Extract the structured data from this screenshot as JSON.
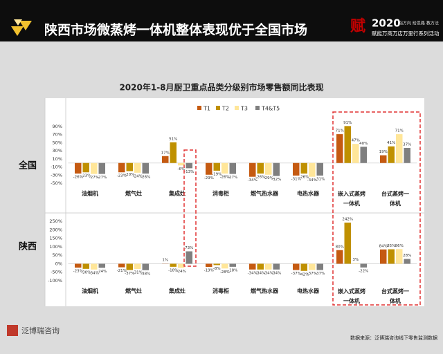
{
  "header": {
    "title": "陕西市场微蒸烤一体机整体表现优于全国市场",
    "badge_year": "2020",
    "badge_slogan": "指方向 给思路 教方法",
    "badge_event": "赋能万商万店万里行系列活动"
  },
  "chart_data": [
    {
      "type": "bar",
      "title": "2020年1-8月厨卫重点品类分级别市场零售额同比表现",
      "row_label": "全国",
      "categories": [
        "油烟机",
        "燃气灶",
        "集成灶",
        "消毒柜",
        "燃气热水器",
        "电热水器",
        "嵌入式蒸烤一体机",
        "台式蒸烤一体机"
      ],
      "series": [
        {
          "name": "T1",
          "color": "#c55a11",
          "values": [
            -26,
            -23,
            17,
            -29,
            -34,
            -31,
            71,
            19
          ],
          "value_labels": [
            "-26%",
            "-23%",
            "17%",
            "-29%",
            "-34%",
            "-31%",
            "71%",
            "19%"
          ]
        },
        {
          "name": "T2",
          "color": "#bf9000",
          "values": [
            -23,
            -20,
            51,
            -19,
            -26,
            -26,
            91,
            41
          ],
          "value_labels": [
            "-23%",
            "-20%",
            "51%",
            "-19%",
            "-26%",
            "-26%",
            "91%",
            "41%"
          ]
        },
        {
          "name": "T3",
          "color": "#ffe699",
          "values": [
            -27,
            -24,
            -6,
            -26,
            -29,
            -34,
            47,
            71
          ],
          "value_labels": [
            "-27%",
            "-24%",
            "-6%",
            "-26%",
            "-29%",
            "-34%",
            "47%",
            "71%"
          ]
        },
        {
          "name": "T4&T5",
          "color": "#7f7f7f",
          "values": [
            -27,
            -26,
            -13,
            -27,
            -32,
            -31,
            40,
            37
          ],
          "value_labels": [
            "-27%",
            "-26%",
            "-13%",
            "-27%",
            "-32%",
            "-31%",
            "40%",
            "37%"
          ]
        }
      ],
      "ylim": [
        -55,
        95
      ],
      "yticks": [
        {
          "value": 90,
          "label": "90%"
        },
        {
          "value": 70,
          "label": "70%"
        },
        {
          "value": 50,
          "label": "50%"
        },
        {
          "value": 30,
          "label": "30%"
        },
        {
          "value": 10,
          "label": "10%"
        },
        {
          "value": -10,
          "label": "-10%"
        },
        {
          "value": -30,
          "label": "-30%"
        },
        {
          "value": -50,
          "label": "-50%"
        }
      ],
      "legend": "top"
    },
    {
      "type": "bar",
      "row_label": "陕西",
      "categories": [
        "油烟机",
        "燃气灶",
        "集成灶",
        "消毒柜",
        "燃气热水器",
        "电热水器",
        "嵌入式蒸烤一体机",
        "台式蒸烤一体机"
      ],
      "series": [
        {
          "name": "T1",
          "color": "#c55a11",
          "values": [
            -23,
            -21,
            1,
            -19,
            -34,
            -37,
            80,
            84
          ],
          "value_labels": [
            "-23%",
            "-21%",
            "1%",
            "-19%",
            "-34%",
            "-37%",
            "80%",
            "84%"
          ]
        },
        {
          "name": "T2",
          "color": "#bf9000",
          "values": [
            -30,
            -37,
            -18,
            -8,
            -34,
            -42,
            242,
            85
          ],
          "value_labels": [
            "-30%",
            "-37%",
            "-18%",
            "-8%",
            "-34%",
            "-42%",
            "242%",
            "85%"
          ]
        },
        {
          "name": "T3",
          "color": "#ffe699",
          "values": [
            -34,
            -31,
            -24,
            -28,
            -34,
            -37,
            3,
            86
          ],
          "value_labels": [
            "-34%",
            "-31%",
            "-24%",
            "-28%",
            "-34%",
            "-37%",
            "3%",
            "86%"
          ]
        },
        {
          "name": "T4&T5",
          "color": "#7f7f7f",
          "values": [
            -24,
            -38,
            73,
            -18,
            -34,
            -37,
            -22,
            28
          ],
          "value_labels": [
            "-24%",
            "-38%",
            "73%",
            "-18%",
            "-34%",
            "-37%",
            "-22%",
            "28%"
          ]
        }
      ],
      "ylim": [
        -110,
        260
      ],
      "yticks": [
        {
          "value": 250,
          "label": "250%"
        },
        {
          "value": 200,
          "label": "200%"
        },
        {
          "value": 150,
          "label": "150%"
        },
        {
          "value": 100,
          "label": "100%"
        },
        {
          "value": 50,
          "label": "50%"
        },
        {
          "value": 0,
          "label": "0%"
        },
        {
          "value": -50,
          "label": "-50%"
        },
        {
          "value": -100,
          "label": "-100%"
        }
      ]
    }
  ],
  "footer": {
    "brand": "泛博瑞咨询",
    "source": "数据来源：泛博瑞咨询线下零售监测数据"
  }
}
